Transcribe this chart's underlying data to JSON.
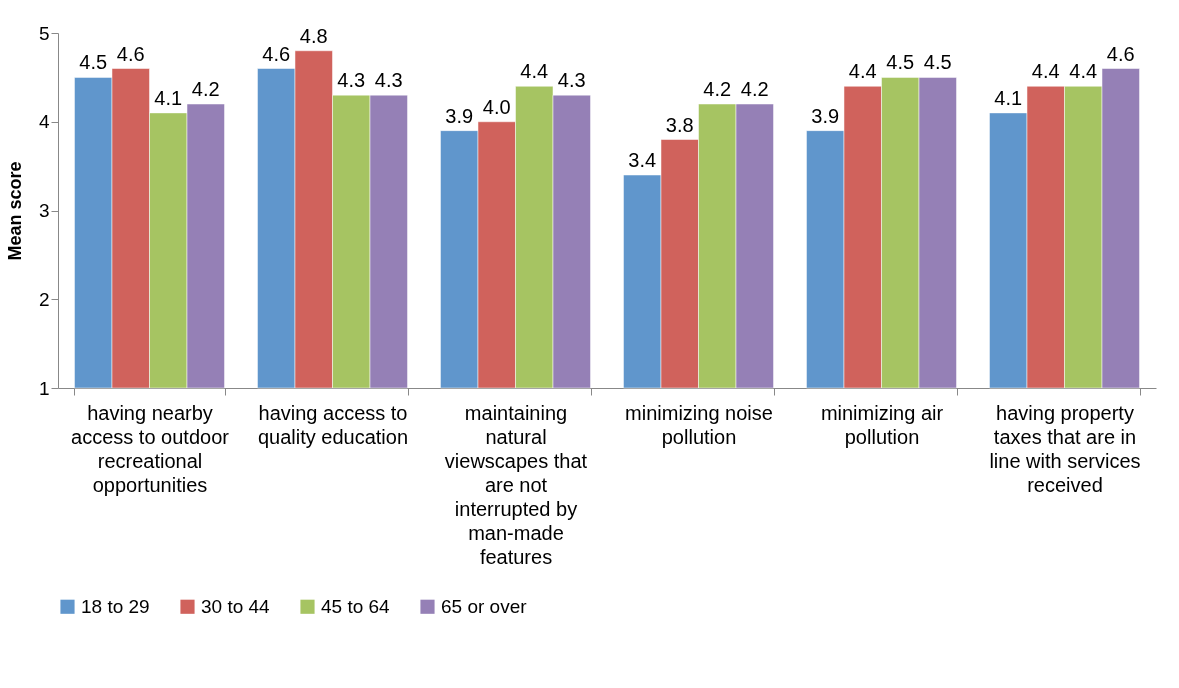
{
  "chart_data": {
    "type": "bar",
    "ylabel": "Mean score",
    "categories": [
      "having nearby access to outdoor recreational opportunities",
      "having access to quality education",
      "maintaining natural viewscapes that are not interrupted by man-made features",
      "minimizing noise pollution",
      "minimizing air pollution",
      "having property taxes that are in line with services received"
    ],
    "series": [
      {
        "name": "18 to 29",
        "color": "#6096cc",
        "values": [
          4.5,
          4.6,
          3.9,
          3.4,
          3.9,
          4.1
        ]
      },
      {
        "name": "30 to 44",
        "color": "#d0625c",
        "values": [
          4.6,
          4.8,
          4.0,
          3.8,
          4.4,
          4.4
        ]
      },
      {
        "name": "45 to 64",
        "color": "#a6c462",
        "values": [
          4.1,
          4.3,
          4.4,
          4.2,
          4.5,
          4.4
        ]
      },
      {
        "name": "65 or over",
        "color": "#9580b6",
        "values": [
          4.2,
          4.3,
          4.3,
          4.2,
          4.5,
          4.6
        ]
      }
    ],
    "ylim": [
      1,
      5
    ],
    "yticks": [
      1,
      2,
      3,
      4,
      5
    ],
    "grid": false,
    "legend": "bottom",
    "value_labels": [
      [
        "4.5",
        "4.6",
        "3.9",
        "3.4",
        "3.9",
        "4.1"
      ],
      [
        "4.6",
        "4.8",
        "4.0",
        "3.8",
        "4.4",
        "4.4"
      ],
      [
        "4.1",
        "4.3",
        "4.4",
        "4.2",
        "4.5",
        "4.4"
      ],
      [
        "4.2",
        "4.3",
        "4.3",
        "4.2",
        "4.5",
        "4.6"
      ]
    ]
  }
}
